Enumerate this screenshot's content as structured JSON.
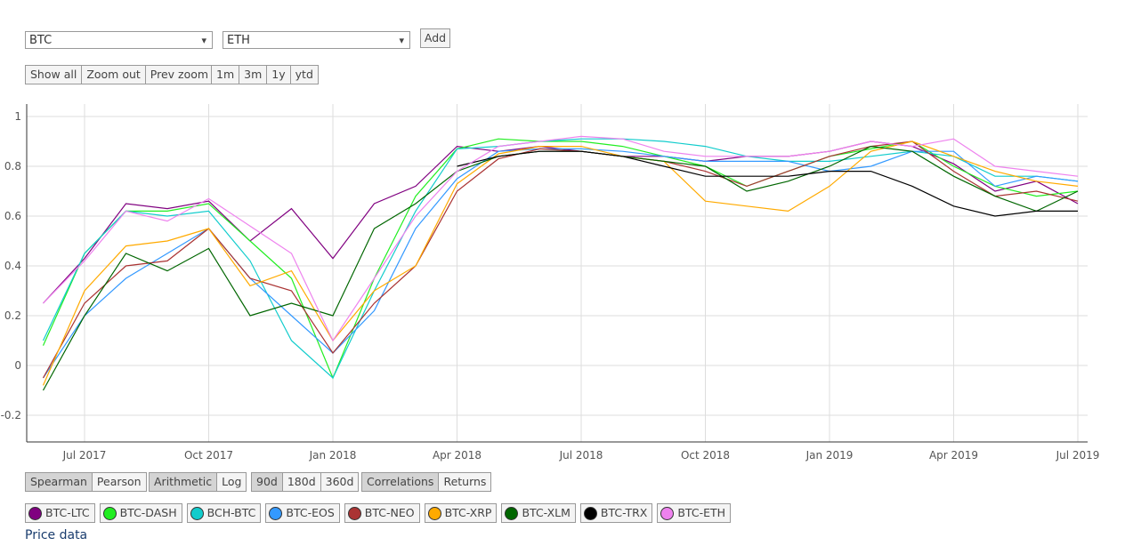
{
  "controls": {
    "asset1": "BTC",
    "asset2": "ETH",
    "add": "Add",
    "zoom_buttons": [
      "Show all",
      "Zoom out",
      "Prev zoom"
    ],
    "range_buttons": [
      "1m",
      "3m",
      "1y",
      "ytd"
    ],
    "method_buttons": [
      "Spearman",
      "Pearson"
    ],
    "method_active": 0,
    "scale_buttons": [
      "Arithmetic",
      "Log"
    ],
    "scale_active": 0,
    "window_buttons": [
      "90d",
      "180d",
      "360d"
    ],
    "window_active": 0,
    "view_buttons": [
      "Correlations",
      "Returns"
    ],
    "view_active": 0,
    "price_link": "Price data"
  },
  "chart_data": {
    "type": "line",
    "x": [
      "Jun 2017",
      "Jul 2017",
      "Aug 2017",
      "Sep 2017",
      "Oct 2017",
      "Nov 2017",
      "Dec 2017",
      "Jan 2018",
      "Feb 2018",
      "Mar 2018",
      "Apr 2018",
      "May 2018",
      "Jun 2018",
      "Jul 2018",
      "Aug 2018",
      "Sep 2018",
      "Oct 2018",
      "Nov 2018",
      "Dec 2018",
      "Jan 2019",
      "Feb 2019",
      "Mar 2019",
      "Apr 2019",
      "May 2019",
      "Jun 2019",
      "Jul 2019"
    ],
    "xticks": [
      "Jul 2017",
      "Oct 2017",
      "Jan 2018",
      "Apr 2018",
      "Jul 2018",
      "Oct 2018",
      "Jan 2019",
      "Apr 2019",
      "Jul 2019"
    ],
    "ylim": [
      -0.3,
      1.05
    ],
    "yticks": [
      1,
      0.8,
      0.6,
      0.4,
      0.2,
      0,
      -0.2
    ],
    "grid": true,
    "series": [
      {
        "name": "BTC-LTC",
        "color": "#800080",
        "values": [
          0.25,
          0.43,
          0.65,
          0.63,
          0.66,
          0.5,
          0.63,
          0.43,
          0.65,
          0.72,
          0.88,
          0.86,
          0.88,
          0.86,
          0.84,
          0.84,
          0.82,
          0.84,
          0.84,
          0.86,
          0.9,
          0.88,
          0.81,
          0.7,
          0.74,
          0.65
        ]
      },
      {
        "name": "BTC-DASH",
        "color": "#22ee22",
        "values": [
          0.08,
          0.45,
          0.62,
          0.62,
          0.65,
          0.5,
          0.35,
          -0.05,
          0.35,
          0.68,
          0.87,
          0.91,
          0.9,
          0.9,
          0.88,
          0.84,
          0.8,
          0.72,
          0.78,
          0.84,
          0.87,
          0.9,
          0.8,
          0.72,
          0.68,
          0.7
        ]
      },
      {
        "name": "BCH-BTC",
        "color": "#11cccc",
        "values": [
          0.1,
          0.45,
          0.62,
          0.6,
          0.62,
          0.42,
          0.1,
          -0.05,
          0.3,
          0.62,
          0.87,
          0.88,
          0.9,
          0.91,
          0.91,
          0.9,
          0.88,
          0.84,
          0.82,
          0.82,
          0.84,
          0.86,
          0.84,
          0.76,
          0.76,
          0.74
        ]
      },
      {
        "name": "BTC-EOS",
        "color": "#3399ff",
        "values": [
          -0.05,
          0.2,
          0.35,
          0.45,
          0.55,
          0.35,
          0.2,
          0.05,
          0.22,
          0.55,
          0.75,
          0.86,
          0.87,
          0.87,
          0.86,
          0.84,
          0.82,
          0.82,
          0.82,
          0.78,
          0.8,
          0.86,
          0.86,
          0.72,
          0.76,
          0.74
        ]
      },
      {
        "name": "BTC-NEO",
        "color": "#aa3333",
        "values": [
          -0.05,
          0.25,
          0.4,
          0.42,
          0.55,
          0.35,
          0.3,
          0.05,
          0.25,
          0.4,
          0.7,
          0.83,
          0.87,
          0.86,
          0.84,
          0.82,
          0.78,
          0.72,
          0.78,
          0.84,
          0.88,
          0.9,
          0.78,
          0.68,
          0.7,
          0.66
        ]
      },
      {
        "name": "BTC-XRP",
        "color": "#ffaa00",
        "values": [
          -0.08,
          0.3,
          0.48,
          0.5,
          0.55,
          0.32,
          0.38,
          0.1,
          0.3,
          0.4,
          0.73,
          0.85,
          0.88,
          0.88,
          0.84,
          0.82,
          0.66,
          0.64,
          0.62,
          0.72,
          0.86,
          0.9,
          0.84,
          0.78,
          0.74,
          0.72
        ]
      },
      {
        "name": "BTC-XLM",
        "color": "#006600",
        "values": [
          -0.1,
          0.2,
          0.45,
          0.38,
          0.47,
          0.2,
          0.25,
          0.2,
          0.55,
          0.65,
          0.78,
          0.84,
          0.86,
          0.86,
          0.84,
          0.82,
          0.8,
          0.7,
          0.74,
          0.8,
          0.88,
          0.86,
          0.76,
          0.68,
          0.62,
          0.7
        ]
      },
      {
        "name": "BTC-TRX",
        "color": "#000000",
        "values": [
          null,
          null,
          null,
          null,
          null,
          null,
          null,
          null,
          null,
          null,
          0.8,
          0.84,
          0.86,
          0.86,
          0.84,
          0.8,
          0.76,
          0.76,
          0.76,
          0.78,
          0.78,
          0.72,
          0.64,
          0.6,
          0.62,
          0.62
        ]
      },
      {
        "name": "BTC-ETH",
        "color": "#ee82ee",
        "values": [
          0.25,
          0.42,
          0.62,
          0.58,
          0.67,
          0.56,
          0.45,
          0.1,
          0.35,
          0.6,
          0.78,
          0.88,
          0.9,
          0.92,
          0.91,
          0.86,
          0.84,
          0.84,
          0.84,
          0.86,
          0.9,
          0.88,
          0.91,
          0.8,
          0.78,
          0.76
        ]
      }
    ]
  }
}
